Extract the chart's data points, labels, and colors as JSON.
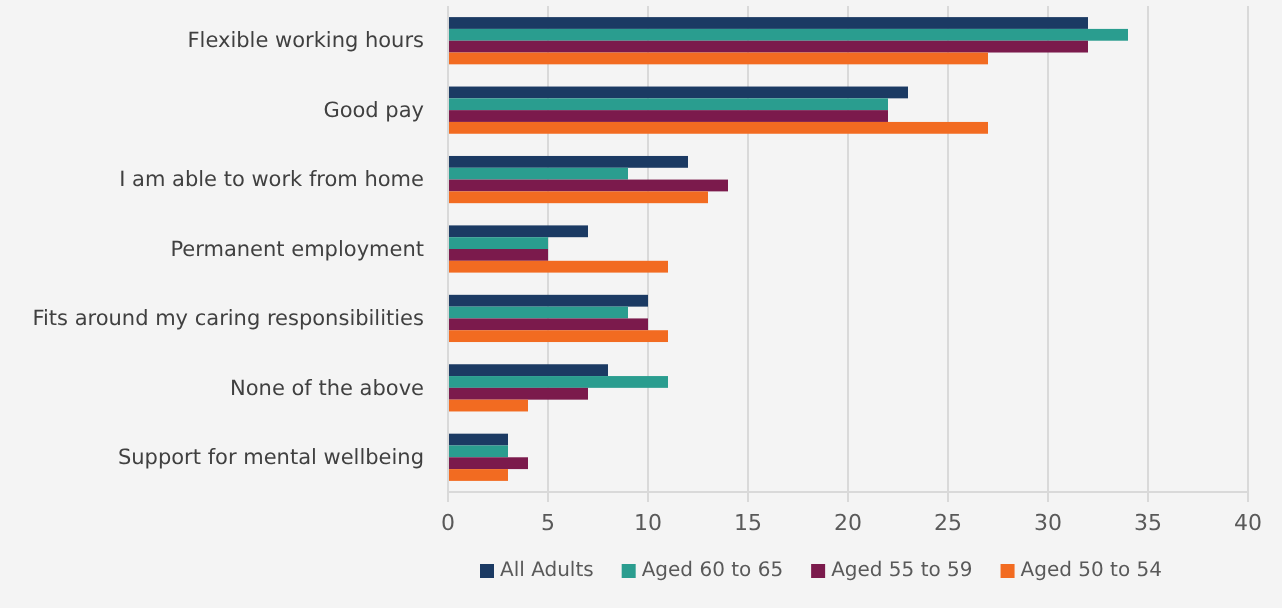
{
  "chart_data": {
    "type": "bar",
    "orientation": "horizontal",
    "categories": [
      "Flexible working hours",
      "Good pay",
      "I am able to work from home",
      "Permanent employment",
      "Fits around my caring responsibilities",
      "None of the above",
      "Support for mental wellbeing"
    ],
    "series": [
      {
        "name": "All Adults",
        "color": "#1b3a63",
        "values": [
          32,
          23,
          12,
          7,
          10,
          8,
          3
        ]
      },
      {
        "name": "Aged 60 to 65",
        "color": "#2a9d8f",
        "values": [
          34,
          22,
          9,
          5,
          9,
          11,
          3
        ]
      },
      {
        "name": "Aged 55 to 59",
        "color": "#7b1a4c",
        "values": [
          32,
          22,
          14,
          5,
          10,
          7,
          4
        ]
      },
      {
        "name": "Aged 50 to 54",
        "color": "#f26b21",
        "values": [
          27,
          27,
          13,
          11,
          11,
          4,
          3
        ]
      }
    ],
    "xlim": [
      0,
      40
    ],
    "xticks": [
      0,
      5,
      10,
      15,
      20,
      25,
      30,
      35,
      40
    ],
    "grid": "x",
    "legend": "bottom"
  }
}
